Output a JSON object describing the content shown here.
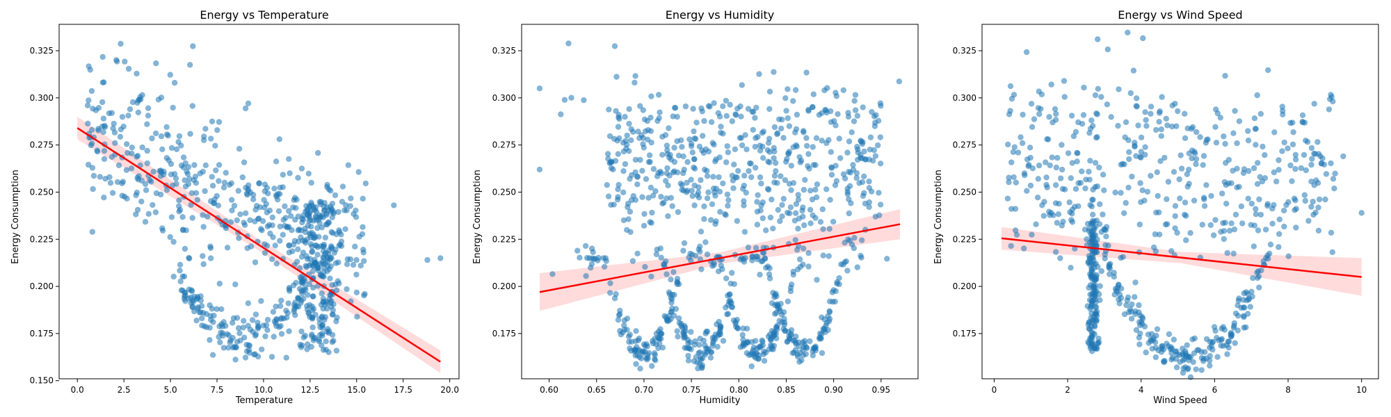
{
  "chart_data": [
    {
      "type": "scatter",
      "title": "Energy vs Temperature",
      "xlabel": "Temperature",
      "ylabel": "Energy Consumption",
      "xlim": [
        -0.98,
        20.5
      ],
      "ylim": [
        0.151,
        0.339
      ],
      "xticks": [
        "0.0",
        "2.5",
        "5.0",
        "7.5",
        "10.0",
        "12.5",
        "15.0",
        "17.5",
        "20.0"
      ],
      "yticks": [
        "0.150",
        "0.175",
        "0.200",
        "0.225",
        "0.250",
        "0.275",
        "0.300",
        "0.325"
      ],
      "regression": {
        "x": [
          0.0,
          19.5
        ],
        "y": [
          0.284,
          0.16
        ]
      },
      "ci_half_width": [
        0.006,
        0.003,
        0.006
      ],
      "point_color": "#1f77b4",
      "line_color": "#ff0000",
      "band_color": "#ff9999",
      "grid": false
    },
    {
      "type": "scatter",
      "title": "Energy vs Humidity",
      "xlabel": "Humidity",
      "ylabel": "Energy Consumption",
      "xlim": [
        0.571,
        0.989
      ],
      "ylim": [
        0.151,
        0.339
      ],
      "xticks": [
        "0.60",
        "0.65",
        "0.70",
        "0.75",
        "0.80",
        "0.85",
        "0.90",
        "0.95"
      ],
      "yticks": [
        "0.175",
        "0.200",
        "0.225",
        "0.250",
        "0.275",
        "0.300",
        "0.325"
      ],
      "regression": {
        "x": [
          0.59,
          0.97
        ],
        "y": [
          0.197,
          0.233
        ]
      },
      "ci_half_width": [
        0.01,
        0.003,
        0.008
      ],
      "point_color": "#1f77b4",
      "line_color": "#ff0000",
      "band_color": "#ff9999",
      "grid": false
    },
    {
      "type": "scatter",
      "title": "Energy vs Wind Speed",
      "xlabel": "Wind Speed",
      "ylabel": "Energy Consumption",
      "xlim": [
        -0.33,
        10.46
      ],
      "ylim": [
        0.151,
        0.339
      ],
      "xticks": [
        "0",
        "2",
        "4",
        "6",
        "8",
        "10"
      ],
      "yticks": [
        "0.175",
        "0.200",
        "0.225",
        "0.250",
        "0.275",
        "0.300",
        "0.325"
      ],
      "regression": {
        "x": [
          0.2,
          10.0
        ],
        "y": [
          0.2255,
          0.205
        ]
      },
      "ci_half_width": [
        0.006,
        0.003,
        0.01
      ],
      "point_color": "#1f77b4",
      "line_color": "#ff0000",
      "band_color": "#ff9999",
      "grid": false
    }
  ]
}
